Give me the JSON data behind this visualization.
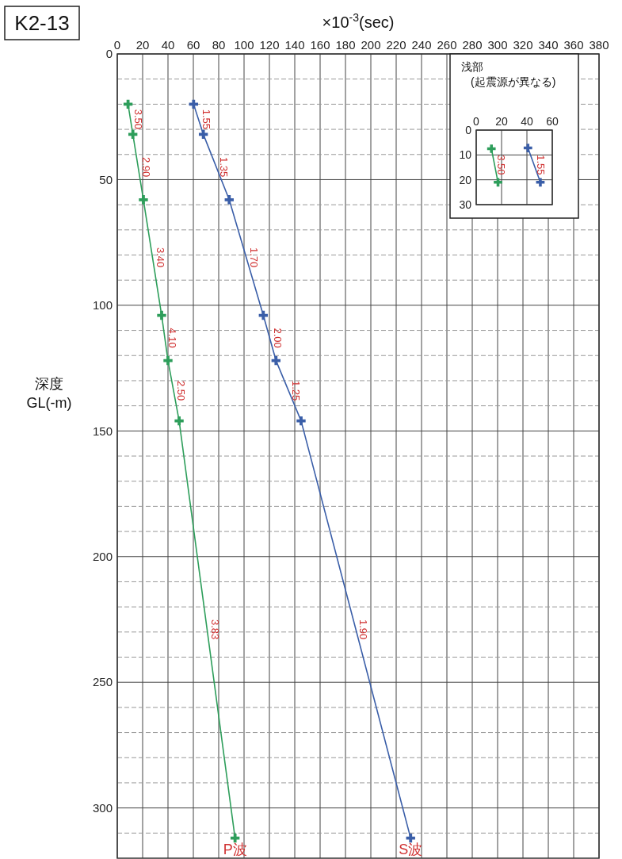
{
  "chart_data": [
    {
      "type": "line",
      "title": "K2-13",
      "xlabel": "×10$^{-3}$(sec)",
      "ylabel": "深度\nGL(-m)",
      "xlim": [
        0,
        380
      ],
      "xticks": [
        0,
        20,
        40,
        60,
        80,
        100,
        120,
        140,
        160,
        180,
        200,
        220,
        240,
        260,
        280,
        300,
        320,
        340,
        360,
        380
      ],
      "ylim": [
        320,
        0
      ],
      "yticks": [
        0,
        {
          "value": 10,
          "label": null
        },
        {
          "value": 20,
          "label": null
        },
        {
          "value": 30,
          "label": null
        },
        {
          "value": 40,
          "label": null
        },
        50,
        {
          "value": 60,
          "label": null
        },
        {
          "value": 70,
          "label": null
        },
        {
          "value": 80,
          "label": null
        },
        {
          "value": 90,
          "label": null
        },
        100,
        {
          "value": 110,
          "label": null
        },
        {
          "value": 120,
          "label": null
        },
        {
          "value": 130,
          "label": null
        },
        {
          "value": 140,
          "label": null
        },
        150,
        {
          "value": 160,
          "label": null
        },
        {
          "value": 170,
          "label": null
        },
        {
          "value": 180,
          "label": null
        },
        {
          "value": 190,
          "label": null
        },
        200,
        {
          "value": 210,
          "label": null
        },
        {
          "value": 220,
          "label": null
        },
        {
          "value": 230,
          "label": null
        },
        {
          "value": 240,
          "label": null
        },
        250,
        {
          "value": 260,
          "label": null
        },
        {
          "value": 270,
          "label": null
        },
        {
          "value": 280,
          "label": null
        },
        {
          "value": 290,
          "label": null
        },
        300,
        {
          "value": 310,
          "label": null
        }
      ],
      "grid": true,
      "marker": "cross",
      "legend": "bottom",
      "series": [
        {
          "name": "P波",
          "color": "#2e9e5b",
          "x": [
            8.5,
            12.3,
            20.6,
            35,
            40,
            48.8,
            92.9
          ],
          "values": [
            20,
            32,
            58,
            104,
            122,
            146,
            312
          ]
        },
        {
          "name": "S波",
          "color": "#3a5ea8",
          "x": [
            60.2,
            67.9,
            88.3,
            115.2,
            125.2,
            145,
            231.4
          ],
          "values": [
            20,
            32,
            58,
            104,
            122,
            146,
            312
          ]
        }
      ],
      "annotations": [
        {
          "text": "3.50",
          "x": 10.4,
          "y": 26
        },
        {
          "text": "2.90",
          "x": 16.5,
          "y": 45
        },
        {
          "text": "3.40",
          "x": 27.8,
          "y": 81
        },
        {
          "text": "4.10",
          "x": 37.5,
          "y": 113
        },
        {
          "text": "2.50",
          "x": 44.4,
          "y": 134
        },
        {
          "text": "3.83",
          "x": 71,
          "y": 229
        },
        {
          "text": "1.55",
          "x": 64,
          "y": 26
        },
        {
          "text": "1.35",
          "x": 78,
          "y": 45
        },
        {
          "text": "1.70",
          "x": 101.7,
          "y": 81
        },
        {
          "text": "2.00",
          "x": 120.2,
          "y": 113
        },
        {
          "text": "1.25",
          "x": 135,
          "y": 134
        },
        {
          "text": "1.90",
          "x": 188,
          "y": 229
        }
      ]
    },
    {
      "type": "line",
      "title": "浅部",
      "subtitle": "(起震源が異なる)",
      "xlim": [
        0,
        60
      ],
      "xticks": [
        0,
        20,
        40,
        60
      ],
      "ylim": [
        30,
        0
      ],
      "yticks": [
        0,
        10,
        20,
        30
      ],
      "grid": true,
      "marker": "cross",
      "series": [
        {
          "color": "#2e9e5b",
          "x": [
            12,
            17.2
          ],
          "values": [
            7.5,
            21
          ]
        },
        {
          "color": "#3a5ea8",
          "x": [
            40.8,
            50.6
          ],
          "values": [
            7.2,
            21
          ]
        }
      ],
      "annotations": [
        {
          "text": "3.50",
          "x": 14.6,
          "y": 14
        },
        {
          "text": "1.55",
          "x": 45.7,
          "y": 14
        }
      ]
    }
  ]
}
